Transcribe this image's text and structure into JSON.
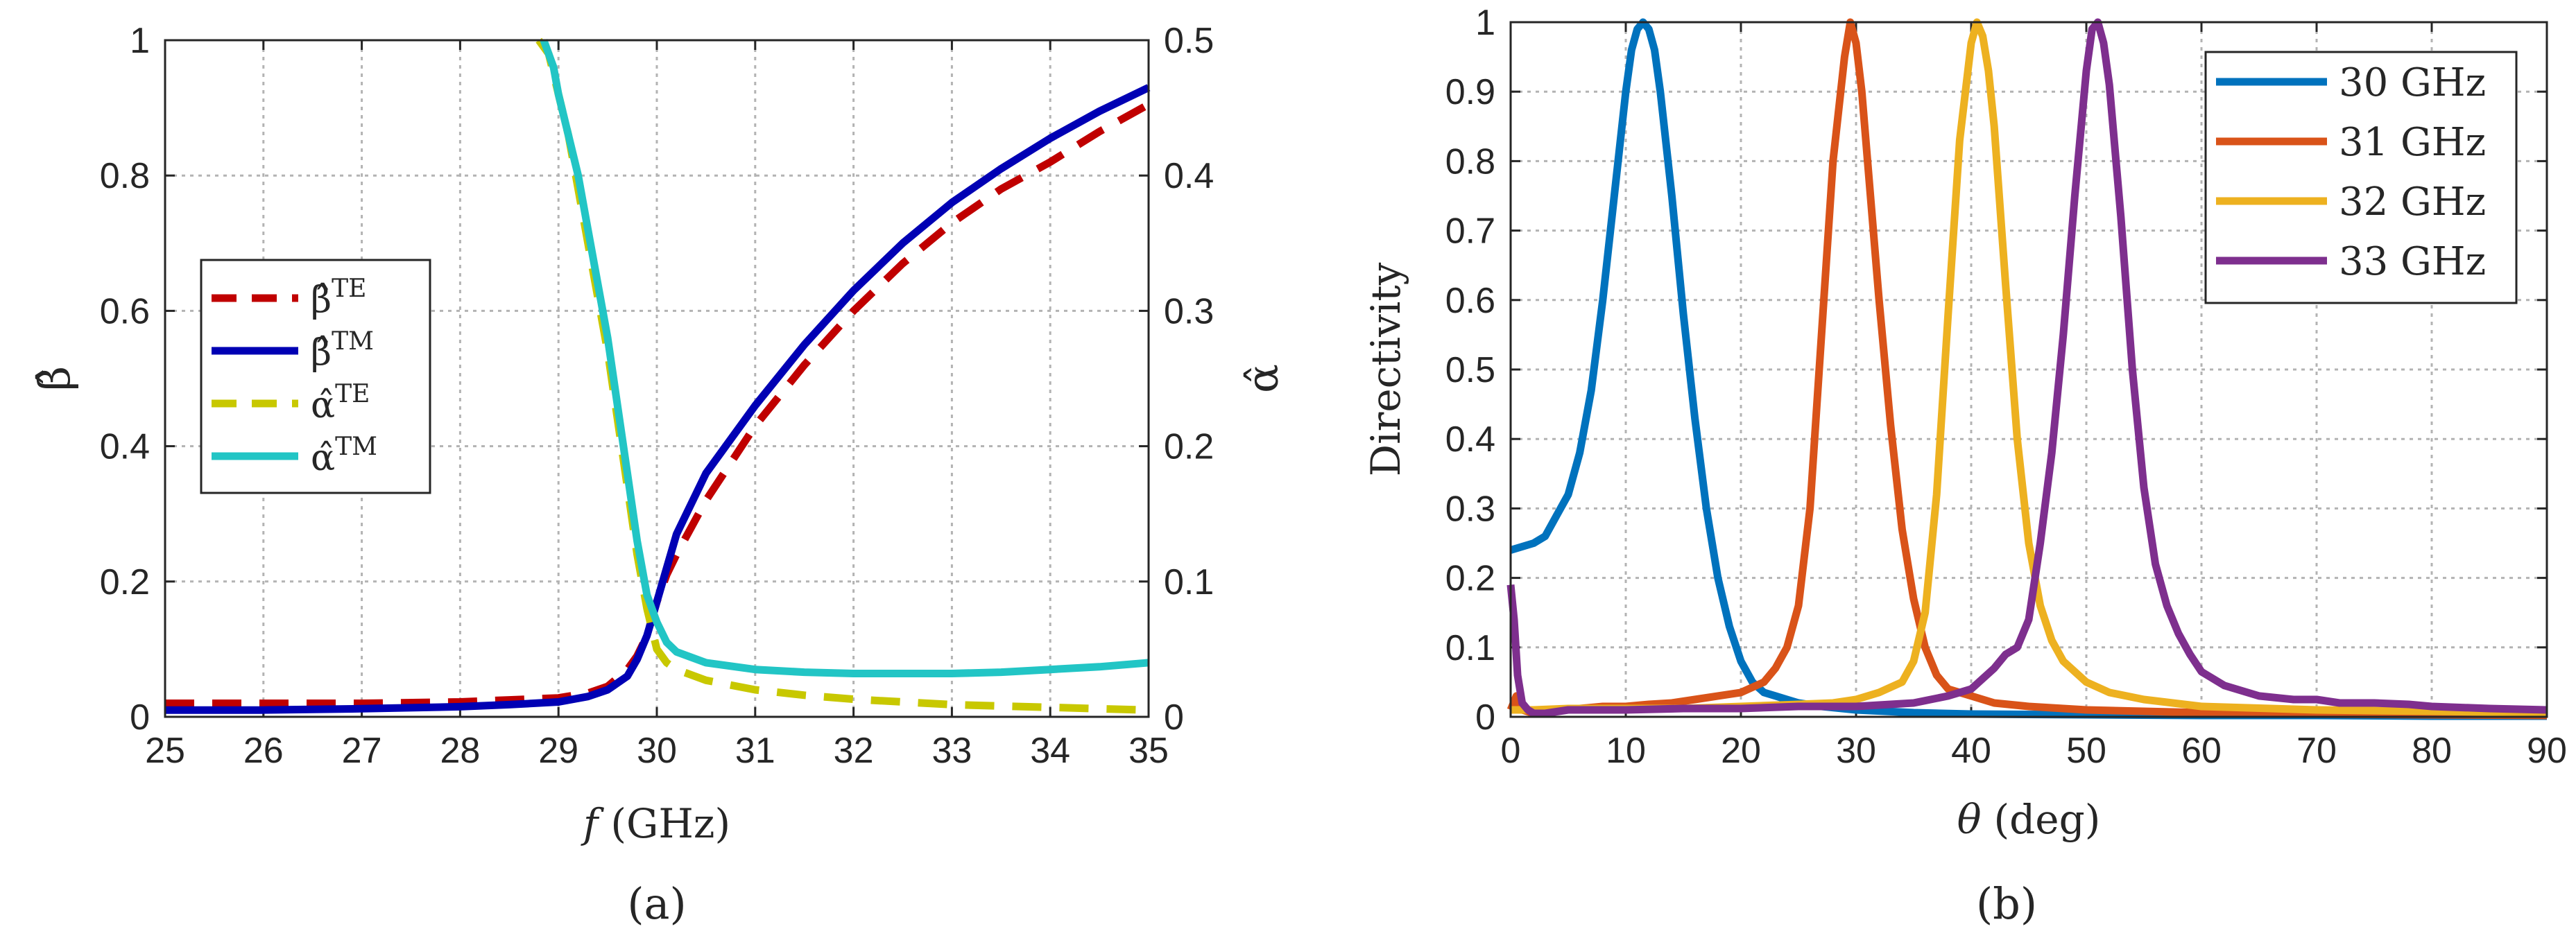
{
  "chart_data": [
    {
      "type": "line",
      "panel_label": "(a)",
      "xlabel_italic": "f",
      "xlabel_rest": "(GHz)",
      "ylabel": "β̂",
      "ylabel_right": "α̂",
      "xlim": [
        25,
        35
      ],
      "ylim": [
        0,
        1
      ],
      "ylim_right": [
        0,
        0.5
      ],
      "xticks": [
        "25",
        "26",
        "27",
        "28",
        "29",
        "30",
        "31",
        "32",
        "33",
        "34",
        "35"
      ],
      "yticks": [
        "0",
        "0.2",
        "0.4",
        "0.6",
        "0.8",
        "1"
      ],
      "yticks_right": [
        "0",
        "0.1",
        "0.2",
        "0.3",
        "0.4",
        "0.5"
      ],
      "grid": true,
      "legend_position": "middle-left",
      "series": [
        {
          "name": "β̂TE",
          "name_base": "β̂",
          "name_sup": "TE",
          "axis": "left",
          "color": "#c00000",
          "style": "dashed",
          "x": [
            25,
            26,
            27,
            28,
            28.5,
            29,
            29.3,
            29.5,
            29.7,
            29.8,
            29.9,
            30,
            30.1,
            30.2,
            30.5,
            31,
            31.5,
            32,
            32.5,
            33,
            33.5,
            34,
            34.5,
            35
          ],
          "y": [
            0.02,
            0.02,
            0.02,
            0.022,
            0.025,
            0.028,
            0.035,
            0.045,
            0.07,
            0.09,
            0.12,
            0.17,
            0.21,
            0.24,
            0.32,
            0.43,
            0.52,
            0.6,
            0.67,
            0.73,
            0.78,
            0.82,
            0.865,
            0.905
          ]
        },
        {
          "name": "β̂TM",
          "name_base": "β̂",
          "name_sup": "TM",
          "axis": "left",
          "color": "#0000b4",
          "style": "solid",
          "x": [
            25,
            26,
            27,
            28,
            28.5,
            29,
            29.3,
            29.5,
            29.7,
            29.8,
            29.9,
            30,
            30.1,
            30.2,
            30.5,
            31,
            31.5,
            32,
            32.5,
            33,
            33.5,
            34,
            34.5,
            35
          ],
          "y": [
            0.01,
            0.01,
            0.012,
            0.015,
            0.018,
            0.022,
            0.03,
            0.04,
            0.06,
            0.085,
            0.12,
            0.17,
            0.22,
            0.27,
            0.36,
            0.46,
            0.55,
            0.63,
            0.7,
            0.76,
            0.81,
            0.855,
            0.895,
            0.93
          ]
        },
        {
          "name": "α̂TE",
          "name_base": "α̂",
          "name_sup": "TE",
          "axis": "right",
          "color": "#c8c800",
          "style": "dashed",
          "x": [
            28.8,
            28.9,
            29,
            29.1,
            29.2,
            29.3,
            29.4,
            29.5,
            29.6,
            29.7,
            29.8,
            29.9,
            30,
            30.1,
            30.2,
            30.5,
            31,
            31.5,
            32,
            32.5,
            33,
            33.5,
            34,
            34.5,
            35
          ],
          "y": [
            0.5,
            0.49,
            0.46,
            0.43,
            0.39,
            0.35,
            0.31,
            0.27,
            0.22,
            0.17,
            0.12,
            0.08,
            0.05,
            0.04,
            0.035,
            0.027,
            0.02,
            0.016,
            0.013,
            0.011,
            0.009,
            0.008,
            0.007,
            0.006,
            0.005
          ]
        },
        {
          "name": "α̂TM",
          "name_base": "α̂",
          "name_sup": "TM",
          "axis": "right",
          "color": "#22c5c5",
          "style": "solid",
          "x": [
            28.85,
            28.95,
            29,
            29.1,
            29.2,
            29.3,
            29.4,
            29.5,
            29.6,
            29.7,
            29.8,
            29.9,
            30,
            30.1,
            30.2,
            30.5,
            31,
            31.5,
            32,
            32.5,
            33,
            33.5,
            34,
            34.5,
            35
          ],
          "y": [
            0.5,
            0.48,
            0.46,
            0.43,
            0.4,
            0.36,
            0.32,
            0.28,
            0.23,
            0.18,
            0.13,
            0.09,
            0.07,
            0.055,
            0.048,
            0.04,
            0.035,
            0.033,
            0.032,
            0.032,
            0.032,
            0.033,
            0.035,
            0.037,
            0.04
          ]
        }
      ]
    },
    {
      "type": "line",
      "panel_label": "(b)",
      "xlabel_italic": "θ",
      "xlabel_rest": "(deg)",
      "ylabel": "Directivity",
      "xlim": [
        0,
        90
      ],
      "ylim": [
        0,
        1
      ],
      "xticks": [
        "0",
        "10",
        "20",
        "30",
        "40",
        "50",
        "60",
        "70",
        "80",
        "90"
      ],
      "yticks": [
        "0",
        "0.1",
        "0.2",
        "0.3",
        "0.4",
        "0.5",
        "0.6",
        "0.7",
        "0.8",
        "0.9",
        "1"
      ],
      "grid": true,
      "legend_position": "top-right",
      "series": [
        {
          "name": "30 GHz",
          "color": "#0072bd",
          "x": [
            0,
            1,
            2,
            3,
            4,
            5,
            6,
            7,
            8,
            9,
            10,
            10.5,
            11,
            11.5,
            12,
            12.5,
            13,
            14,
            15,
            16,
            17,
            18,
            19,
            20,
            21,
            22,
            23,
            24,
            25,
            27,
            30,
            35,
            40,
            50,
            60,
            70,
            80,
            90
          ],
          "y": [
            0.24,
            0.245,
            0.25,
            0.26,
            0.29,
            0.32,
            0.38,
            0.47,
            0.6,
            0.75,
            0.9,
            0.96,
            0.99,
            1.0,
            0.99,
            0.96,
            0.9,
            0.75,
            0.58,
            0.43,
            0.3,
            0.2,
            0.13,
            0.08,
            0.05,
            0.035,
            0.03,
            0.025,
            0.02,
            0.015,
            0.01,
            0.006,
            0.004,
            0.003,
            0.002,
            0.002,
            0.001,
            0.001
          ]
        },
        {
          "name": "31 GHz",
          "color": "#d95319",
          "x": [
            0,
            0.5,
            1,
            2,
            4,
            6,
            8,
            10,
            12,
            14,
            16,
            18,
            20,
            22,
            23,
            24,
            25,
            26,
            27,
            28,
            29,
            29.5,
            30,
            30.5,
            31,
            32,
            33,
            34,
            35,
            36,
            37,
            38,
            40,
            42,
            45,
            50,
            60,
            70,
            80,
            90
          ],
          "y": [
            0.01,
            0.03,
            0.01,
            0.005,
            0.01,
            0.012,
            0.015,
            0.015,
            0.018,
            0.02,
            0.025,
            0.03,
            0.035,
            0.05,
            0.07,
            0.1,
            0.16,
            0.3,
            0.55,
            0.8,
            0.95,
            1.0,
            0.97,
            0.9,
            0.8,
            0.6,
            0.42,
            0.27,
            0.17,
            0.1,
            0.06,
            0.04,
            0.03,
            0.02,
            0.015,
            0.01,
            0.006,
            0.004,
            0.003,
            0.002
          ]
        },
        {
          "name": "32 GHz",
          "color": "#edb120",
          "x": [
            0,
            2,
            5,
            10,
            15,
            20,
            25,
            28,
            30,
            32,
            34,
            35,
            36,
            37,
            38,
            39,
            40,
            40.5,
            41,
            41.5,
            42,
            43,
            44,
            45,
            46,
            47,
            48,
            50,
            52,
            55,
            60,
            70,
            80,
            90
          ],
          "y": [
            0.01,
            0.01,
            0.012,
            0.012,
            0.012,
            0.015,
            0.018,
            0.02,
            0.025,
            0.035,
            0.05,
            0.08,
            0.15,
            0.32,
            0.58,
            0.83,
            0.97,
            1.0,
            0.98,
            0.93,
            0.85,
            0.62,
            0.4,
            0.25,
            0.16,
            0.11,
            0.08,
            0.05,
            0.035,
            0.025,
            0.015,
            0.01,
            0.008,
            0.006
          ]
        },
        {
          "name": "33 GHz",
          "color": "#7e2f8e",
          "x": [
            0,
            0.3,
            0.6,
            1,
            1.5,
            2,
            3,
            5,
            10,
            15,
            20,
            25,
            30,
            35,
            38,
            40,
            42,
            43,
            44,
            45,
            46,
            47,
            48,
            49,
            50,
            50.5,
            51,
            51.5,
            52,
            53,
            54,
            55,
            56,
            57,
            58,
            59,
            60,
            62,
            65,
            68,
            70,
            72,
            75,
            78,
            80,
            85,
            90
          ],
          "y": [
            0.19,
            0.14,
            0.06,
            0.02,
            0.01,
            0.005,
            0.005,
            0.01,
            0.01,
            0.012,
            0.012,
            0.015,
            0.015,
            0.02,
            0.03,
            0.04,
            0.07,
            0.09,
            0.1,
            0.14,
            0.25,
            0.38,
            0.55,
            0.75,
            0.93,
            0.99,
            1.0,
            0.97,
            0.91,
            0.72,
            0.5,
            0.33,
            0.22,
            0.16,
            0.12,
            0.09,
            0.065,
            0.045,
            0.03,
            0.025,
            0.025,
            0.02,
            0.02,
            0.018,
            0.015,
            0.012,
            0.01
          ]
        }
      ]
    }
  ]
}
